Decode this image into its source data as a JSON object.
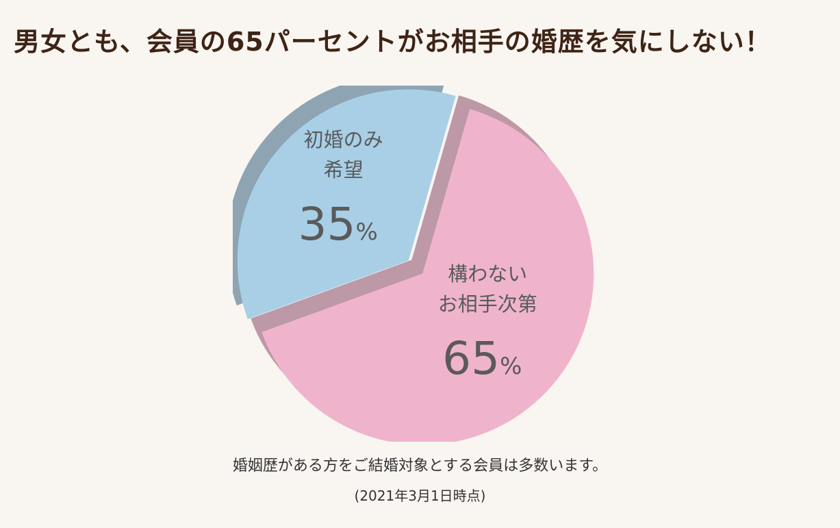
{
  "header": {
    "title": "男女とも、会員の65パーセントがお相手の婚歴を気にしない！"
  },
  "chart_data": {
    "type": "pie",
    "title": "",
    "slices": [
      {
        "label_lines": [
          "初婚のみ",
          "希望"
        ],
        "value": 35,
        "unit": "%",
        "color": "#a8cfe6",
        "side_color": "#8ea4b3"
      },
      {
        "label_lines": [
          "構わない",
          "お相手次第"
        ],
        "value": 65,
        "unit": "%",
        "color": "#efb4cc",
        "side_color": "#bd98a6"
      }
    ]
  },
  "footer": {
    "caption": "婚姻歴がある方をご結婚対象とする会員は多数います。",
    "date_note": "(2021年3月1日時点)"
  }
}
